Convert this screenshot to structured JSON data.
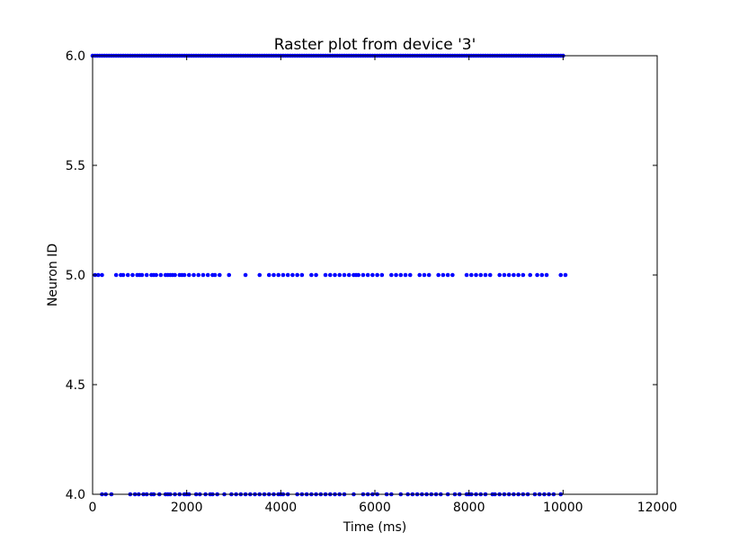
{
  "chart_data": {
    "type": "scatter",
    "title": "Raster plot from device '3'",
    "xlabel": "Time (ms)",
    "ylabel": "Neuron ID",
    "xlim": [
      0,
      12000
    ],
    "ylim": [
      4.0,
      6.0
    ],
    "x_ticks": [
      0,
      2000,
      4000,
      6000,
      8000,
      10000,
      12000
    ],
    "x_tick_labels": [
      "0",
      "2000",
      "4000",
      "6000",
      "8000",
      "10000",
      "12000"
    ],
    "y_ticks": [
      4.0,
      4.5,
      5.0,
      5.5,
      6.0
    ],
    "y_tick_labels": [
      "4.0",
      "4.5",
      "5.0",
      "5.5",
      "6.0"
    ],
    "grid": false,
    "marker_color": "#0000ff",
    "series": [
      {
        "neuron": 4,
        "spike_times": [
          200,
          280,
          400,
          800,
          900,
          980,
          1080,
          1150,
          1250,
          1300,
          1420,
          1550,
          1600,
          1650,
          1750,
          1850,
          1950,
          2000,
          2050,
          2200,
          2280,
          2400,
          2500,
          2550,
          2650,
          2800,
          2950,
          3050,
          3150,
          3250,
          3350,
          3450,
          3550,
          3650,
          3750,
          3850,
          3950,
          4000,
          4050,
          4150,
          4350,
          4450,
          4550,
          4650,
          4750,
          4850,
          4950,
          5050,
          5150,
          5250,
          5350,
          5550,
          5750,
          5850,
          5950,
          6050,
          6250,
          6350,
          6550,
          6700,
          6800,
          6900,
          7000,
          7100,
          7200,
          7300,
          7400,
          7550,
          7700,
          7800,
          7950,
          8000,
          8050,
          8150,
          8250,
          8350,
          8500,
          8550,
          8650,
          8750,
          8850,
          8950,
          9050,
          9150,
          9250,
          9400,
          9500,
          9600,
          9700,
          9800,
          9950
        ]
      },
      {
        "neuron": 5,
        "spike_times": [
          50,
          120,
          200,
          500,
          600,
          650,
          750,
          850,
          950,
          1000,
          1050,
          1150,
          1250,
          1300,
          1350,
          1450,
          1550,
          1600,
          1650,
          1700,
          1750,
          1850,
          1900,
          1950,
          2050,
          2150,
          2250,
          2350,
          2450,
          2550,
          2600,
          2700,
          2900,
          3250,
          3550,
          3750,
          3850,
          3950,
          4050,
          4150,
          4250,
          4350,
          4450,
          4650,
          4750,
          4950,
          5050,
          5150,
          5250,
          5350,
          5450,
          5550,
          5600,
          5650,
          5750,
          5850,
          5950,
          6050,
          6150,
          6350,
          6450,
          6550,
          6650,
          6750,
          6950,
          7050,
          7150,
          7350,
          7450,
          7550,
          7650,
          7950,
          8050,
          8150,
          8250,
          8350,
          8450,
          8650,
          8750,
          8850,
          8950,
          9050,
          9150,
          9300,
          9450,
          9550,
          9650,
          9950,
          10050
        ]
      },
      {
        "neuron": 6,
        "spike_times": [
          0,
          50,
          100,
          150,
          200,
          250,
          300,
          350,
          400,
          450,
          500,
          550,
          600,
          650,
          700,
          750,
          800,
          850,
          900,
          950,
          1000,
          1050,
          1100,
          1150,
          1200,
          1250,
          1300,
          1350,
          1400,
          1450,
          1500,
          1550,
          1600,
          1650,
          1700,
          1750,
          1800,
          1850,
          1900,
          1950,
          2000,
          2050,
          2100,
          2150,
          2200,
          2250,
          2300,
          2350,
          2400,
          2450,
          2500,
          2550,
          2600,
          2650,
          2700,
          2750,
          2800,
          2850,
          2900,
          2950,
          3000,
          3050,
          3100,
          3150,
          3200,
          3250,
          3300,
          3350,
          3400,
          3450,
          3500,
          3550,
          3600,
          3650,
          3700,
          3750,
          3800,
          3850,
          3900,
          3950,
          4000,
          4050,
          4100,
          4150,
          4200,
          4250,
          4300,
          4350,
          4400,
          4450,
          4500,
          4550,
          4600,
          4650,
          4700,
          4750,
          4800,
          4850,
          4900,
          4950,
          5000,
          5050,
          5100,
          5150,
          5200,
          5250,
          5300,
          5350,
          5400,
          5450,
          5500,
          5550,
          5600,
          5650,
          5700,
          5750,
          5800,
          5850,
          5900,
          5950,
          6000,
          6050,
          6100,
          6150,
          6200,
          6250,
          6300,
          6350,
          6400,
          6450,
          6500,
          6550,
          6600,
          6650,
          6700,
          6750,
          6800,
          6850,
          6900,
          6950,
          7000,
          7050,
          7100,
          7150,
          7200,
          7250,
          7300,
          7350,
          7400,
          7450,
          7500,
          7550,
          7600,
          7650,
          7700,
          7750,
          7800,
          7850,
          7900,
          7950,
          8000,
          8050,
          8100,
          8150,
          8200,
          8250,
          8300,
          8350,
          8400,
          8450,
          8500,
          8550,
          8600,
          8650,
          8700,
          8750,
          8800,
          8850,
          8900,
          8950,
          9000,
          9050,
          9100,
          9150,
          9200,
          9250,
          9300,
          9350,
          9400,
          9450,
          9500,
          9550,
          9600,
          9650,
          9700,
          9750,
          9800,
          9850,
          9900,
          9950,
          10000
        ]
      }
    ]
  }
}
